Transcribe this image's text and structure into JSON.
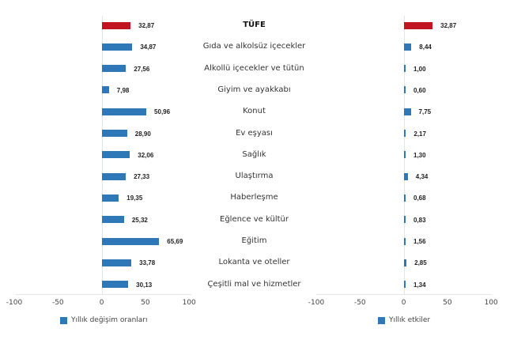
{
  "chart_data": [
    {
      "type": "bar",
      "orientation": "horizontal",
      "title": "",
      "categories": [
        "TÜFE",
        "Gıda ve alkolsüz içecekler",
        "Alkollü içecekler ve tütün",
        "Giyim ve ayakkabı",
        "Konut",
        "Ev eşyası",
        "Sağlık",
        "Ulaştırma",
        "Haberleşme",
        "Eğlence ve kültür",
        "Eğitim",
        "Lokanta ve oteller",
        "Çeşitli mal ve hizmetler"
      ],
      "series": [
        {
          "name": "Yıllık değişim oranları",
          "values": [
            32.87,
            34.87,
            27.56,
            7.98,
            50.96,
            28.9,
            32.06,
            27.33,
            19.35,
            25.32,
            65.69,
            33.78,
            30.13
          ]
        }
      ],
      "value_labels": [
        "32,87",
        "34,87",
        "27,56",
        "7,98",
        "50,96",
        "28,90",
        "32,06",
        "27,33",
        "19,35",
        "25,32",
        "65,69",
        "33,78",
        "30,13"
      ],
      "xlabel": "",
      "ylabel": "",
      "xlim": [
        -100,
        100
      ],
      "xticks": [
        "-100",
        "-50",
        "0",
        "50",
        "100"
      ],
      "legend_position": "bottom",
      "grid": false,
      "highlight": {
        "category": "TÜFE",
        "color": "#c0151f"
      },
      "bar_color": "#2e78b8"
    },
    {
      "type": "bar",
      "orientation": "horizontal",
      "title": "",
      "categories": [
        "TÜFE",
        "Gıda ve alkolsüz içecekler",
        "Alkollü içecekler ve tütün",
        "Giyim ve ayakkabı",
        "Konut",
        "Ev eşyası",
        "Sağlık",
        "Ulaştırma",
        "Haberleşme",
        "Eğlence ve kültür",
        "Eğitim",
        "Lokanta ve oteller",
        "Çeşitli mal ve hizmetler"
      ],
      "series": [
        {
          "name": "Yıllık etkiler",
          "values": [
            32.87,
            8.44,
            1.0,
            0.6,
            7.75,
            2.17,
            1.3,
            4.34,
            0.68,
            0.83,
            1.56,
            2.85,
            1.34
          ]
        }
      ],
      "value_labels": [
        "32,87",
        "8,44",
        "1,00",
        "0,60",
        "7,75",
        "2,17",
        "1,30",
        "4,34",
        "0,68",
        "0,83",
        "1,56",
        "2,85",
        "1,34"
      ],
      "xlabel": "",
      "ylabel": "",
      "xlim": [
        -100,
        100
      ],
      "xticks": [
        "-100",
        "-50",
        "0",
        "50",
        "100"
      ],
      "legend_position": "bottom",
      "grid": false,
      "highlight": {
        "category": "TÜFE",
        "color": "#c0151f"
      },
      "bar_color": "#2e78b8"
    }
  ],
  "legend": {
    "left": "Yıllık değişim oranları",
    "right": "Yıllık etkiler"
  },
  "colors": {
    "highlight": "#c0151f",
    "bar": "#2e78b8"
  }
}
